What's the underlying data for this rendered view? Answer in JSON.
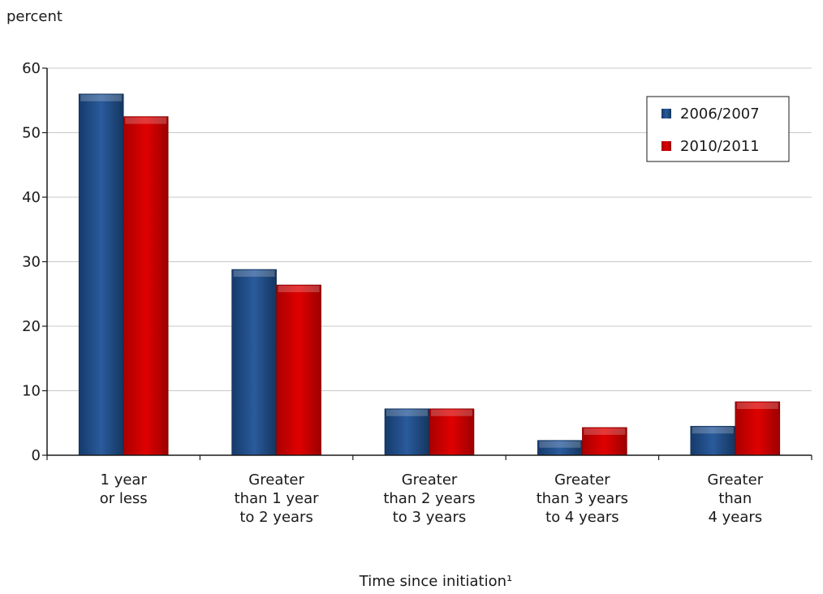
{
  "chart_data": {
    "type": "bar",
    "ylabel": "percent",
    "xlabel": "Time since initiation¹",
    "ylim": [
      0,
      60
    ],
    "yticks": [
      0,
      10,
      20,
      30,
      40,
      50,
      60
    ],
    "grid": true,
    "legend_position": "top-right",
    "categories": [
      [
        "1 year",
        "or less"
      ],
      [
        "Greater",
        "than 1 year",
        "to 2 years"
      ],
      [
        "Greater",
        "than 2 years",
        "to 3 years"
      ],
      [
        "Greater",
        "than 3 years",
        "to 4 years"
      ],
      [
        "Greater",
        "than",
        "4 years"
      ]
    ],
    "series": [
      {
        "name": "2006/2007",
        "color": "#1f4e8c",
        "values": [
          56,
          28.8,
          7.2,
          2.3,
          4.5
        ]
      },
      {
        "name": "2010/2011",
        "color": "#d90000",
        "values": [
          52.5,
          26.4,
          7.2,
          4.3,
          8.3
        ]
      }
    ]
  }
}
